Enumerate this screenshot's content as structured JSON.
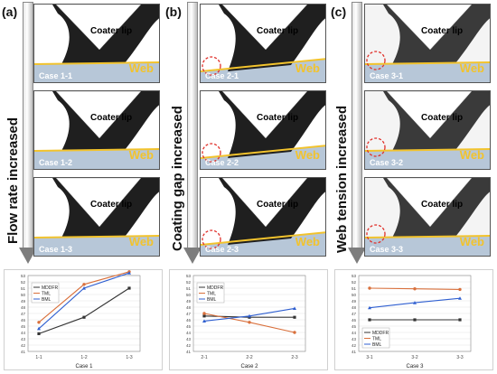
{
  "panels": [
    {
      "letter": "(a)",
      "arrow_label": "Flow rate increased",
      "frames": [
        {
          "case": "Case 1-1",
          "coater": "Coater lip",
          "web": "Web",
          "circle": false
        },
        {
          "case": "Case 1-2",
          "coater": "Coater lip",
          "web": "Web",
          "circle": false
        },
        {
          "case": "Case 1-3",
          "coater": "Coater lip",
          "web": "Web",
          "circle": false
        }
      ]
    },
    {
      "letter": "(b)",
      "arrow_label": "Coating gap increased",
      "frames": [
        {
          "case": "Case 2-1",
          "coater": "Coater lip",
          "web": "Web",
          "circle": true
        },
        {
          "case": "Case 2-2",
          "coater": "Coater lip",
          "web": "Web",
          "circle": true
        },
        {
          "case": "Case 2-3",
          "coater": "Coater lip",
          "web": "Web",
          "circle": true
        }
      ]
    },
    {
      "letter": "(c)",
      "arrow_label": "Web tension increased",
      "frames": [
        {
          "case": "Case 3-1",
          "coater": "Coater lip",
          "web": "Web",
          "circle": true
        },
        {
          "case": "Case 3-2",
          "coater": "Coater lip",
          "web": "Web",
          "circle": true
        },
        {
          "case": "Case 3-3",
          "coater": "Coater lip",
          "web": "Web",
          "circle": true
        }
      ]
    }
  ],
  "colors": {
    "web": "#b7c7d8",
    "web_line": "#f2c32d",
    "fluid": "#1f1f1f",
    "circle": "#e0302a",
    "mddfr": "#333333",
    "tml": "#d9703c",
    "bml": "#2f5fd0"
  },
  "chart_data": [
    {
      "type": "line",
      "categories": [
        "1-1",
        "1-2",
        "1-3"
      ],
      "xlabel": "Case 1",
      "ylim": [
        41,
        53
      ],
      "yticks": [
        "41",
        "42",
        "43",
        "44",
        "45",
        "46",
        "47",
        "48",
        "49",
        "50",
        "51",
        "52",
        "53"
      ],
      "series": [
        {
          "name": "MDDFR",
          "values": [
            43.8,
            46.4,
            51.0
          ]
        },
        {
          "name": "TML",
          "values": [
            45.6,
            51.6,
            53.6
          ]
        },
        {
          "name": "BML",
          "values": [
            44.6,
            51.0,
            53.4
          ]
        }
      ]
    },
    {
      "type": "line",
      "categories": [
        "2-1",
        "2-2",
        "2-3"
      ],
      "xlabel": "Case 2",
      "ylim": [
        41,
        53
      ],
      "yticks": [
        "41",
        "42",
        "43",
        "44",
        "45",
        "46",
        "47",
        "48",
        "49",
        "50",
        "51",
        "52",
        "53"
      ],
      "series": [
        {
          "name": "MDDFR",
          "values": [
            46.6,
            46.4,
            46.4
          ]
        },
        {
          "name": "TML",
          "values": [
            47.0,
            45.6,
            44.0
          ]
        },
        {
          "name": "BML",
          "values": [
            45.8,
            46.6,
            47.8
          ]
        }
      ],
      "legend": "top-left"
    },
    {
      "type": "line",
      "categories": [
        "3-1",
        "3-2",
        "3-3"
      ],
      "xlabel": "Case 3",
      "ylim": [
        41,
        53
      ],
      "yticks": [
        "41",
        "42",
        "43",
        "44",
        "45",
        "46",
        "47",
        "48",
        "49",
        "50",
        "51",
        "52",
        "53"
      ],
      "series": [
        {
          "name": "MDDFR",
          "values": [
            46.0,
            46.0,
            46.0
          ]
        },
        {
          "name": "TML",
          "values": [
            51.0,
            50.9,
            50.8
          ]
        },
        {
          "name": "BML",
          "values": [
            47.9,
            48.7,
            49.4
          ]
        }
      ],
      "legend": "bottom-left"
    }
  ]
}
